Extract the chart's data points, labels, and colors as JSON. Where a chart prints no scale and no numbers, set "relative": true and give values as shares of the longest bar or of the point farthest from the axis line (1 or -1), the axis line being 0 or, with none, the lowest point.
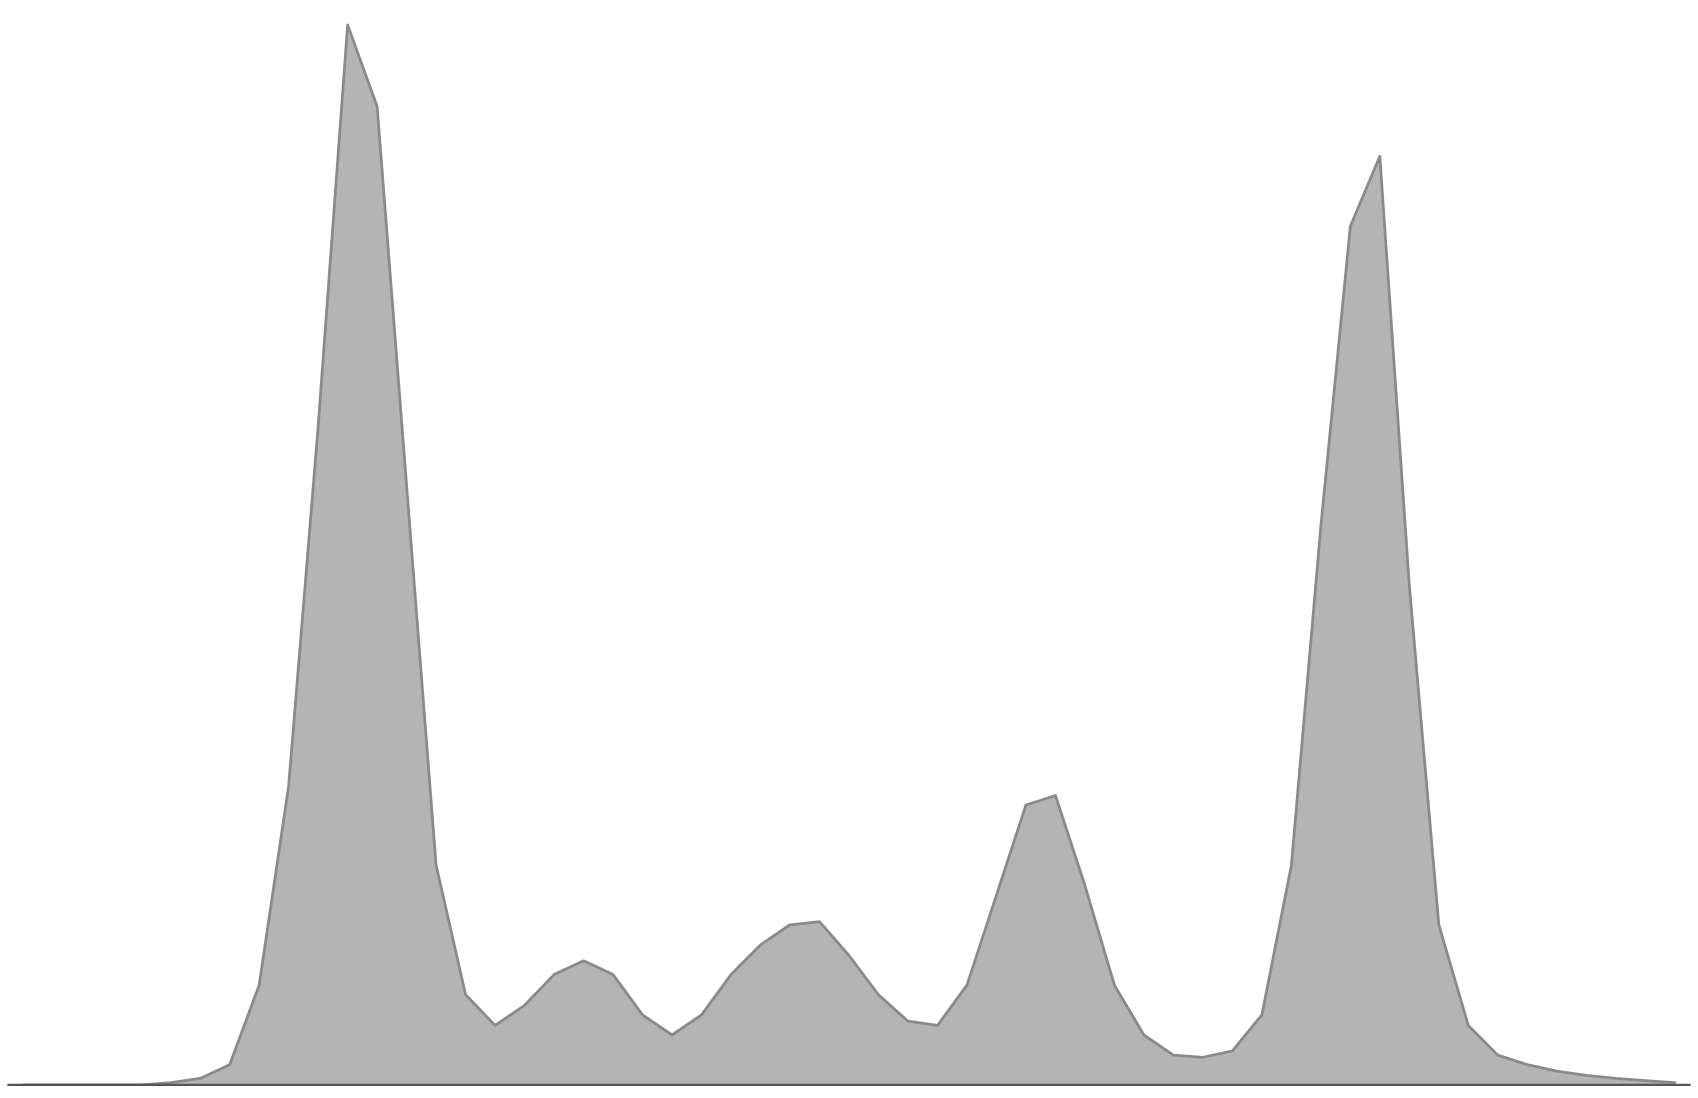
{
  "chart_data": {
    "type": "area",
    "relative": true,
    "color": "#b4b4b4",
    "categories": [
      null,
      null,
      null,
      null,
      null,
      null,
      null,
      null,
      null,
      null,
      null,
      null,
      null,
      null,
      null,
      null,
      null,
      null,
      null,
      null,
      null,
      null,
      null,
      null,
      null,
      null,
      null,
      null,
      null,
      null,
      null,
      null,
      null,
      null,
      null,
      null,
      null,
      null,
      null,
      null,
      null,
      null,
      null,
      null,
      null,
      null,
      null,
      null,
      null,
      null,
      null,
      null,
      null,
      null,
      null,
      null,
      null
    ],
    "values": [
      0,
      0,
      0,
      0,
      0,
      0.002,
      0.006,
      0.019,
      0.094,
      0.282,
      0.621,
      1.0,
      0.923,
      0.565,
      0.207,
      0.085,
      0.056,
      0.075,
      0.104,
      0.117,
      0.104,
      0.066,
      0.047,
      0.066,
      0.104,
      0.132,
      0.151,
      0.154,
      0.122,
      0.085,
      0.06,
      0.056,
      0.094,
      0.179,
      0.264,
      0.273,
      0.188,
      0.094,
      0.047,
      0.028,
      0.026,
      0.032,
      0.066,
      0.207,
      0.527,
      0.81,
      0.876,
      0.471,
      0.151,
      0.056,
      0.028,
      0.019,
      0.013,
      0.009,
      0.006,
      0.004,
      0.002
    ]
  }
}
